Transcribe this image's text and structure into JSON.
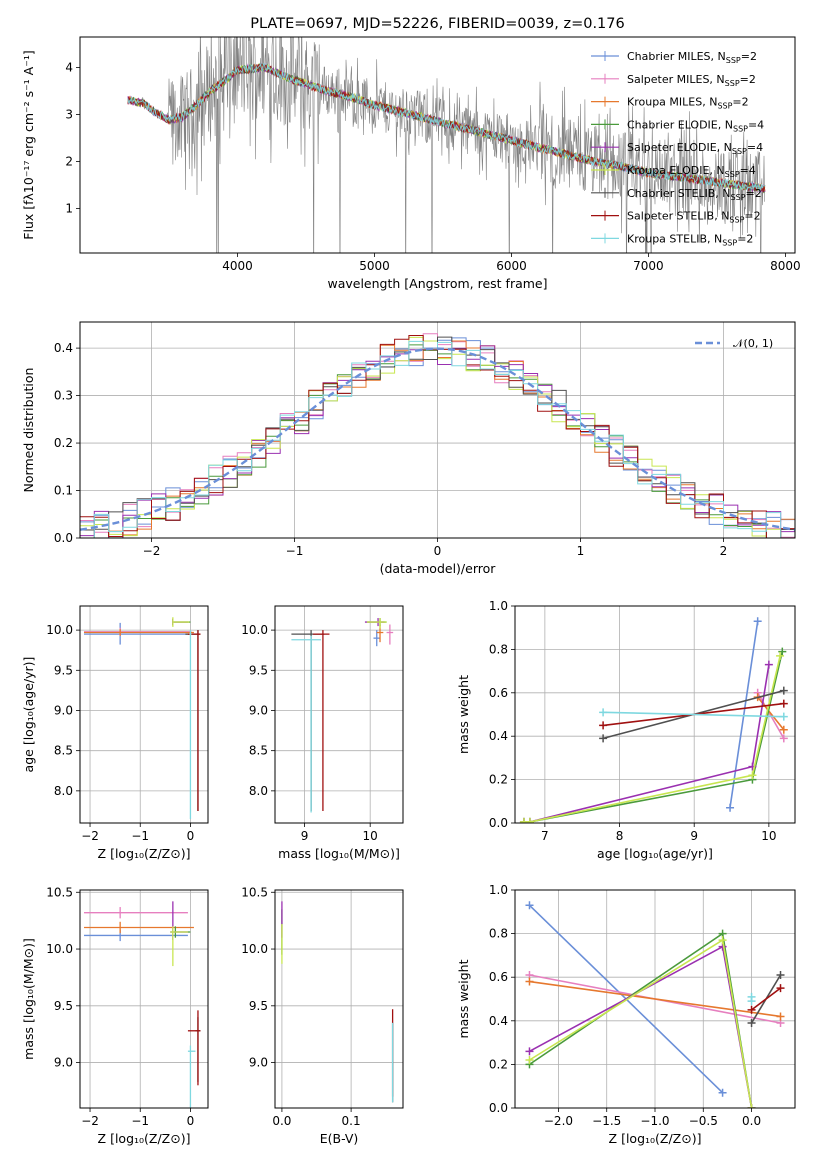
{
  "colors": {
    "Chabrier MILES": "#6a8fd8",
    "Salpeter MILES": "#e67fbf",
    "Kroupa MILES": "#e6782e",
    "Chabrier ELODIE": "#4a9a3c",
    "Salpeter ELODIE": "#9a30b0",
    "Kroupa ELODIE": "#c8e650",
    "Chabrier STELIB": "#505050",
    "Salpeter STELIB": "#a01010",
    "Kroupa STELIB": "#7fd8e0",
    "data": "#808080",
    "normal": "#6a8fd8"
  },
  "chart_data": [
    {
      "id": "spectrum",
      "type": "line",
      "title": "PLATE=0697, MJD=52226, FIBERID=0039, z=0.176",
      "xlabel": "wavelength [Angstrom, rest frame]",
      "ylabel": "Flux [fλ10⁻¹⁷ erg cm⁻² s⁻¹ A⁻¹]",
      "xlim": [
        2850,
        8070
      ],
      "ylim": [
        0.05,
        4.65
      ],
      "xticks": [
        4000,
        5000,
        6000,
        7000,
        8000
      ],
      "yticks": [
        1,
        2,
        3,
        4
      ],
      "grid": false,
      "legend_loc": "upper right",
      "legend": [
        {
          "label": "Chabrier MILES, N",
          "sub": "SSP",
          "suffix": "=2"
        },
        {
          "label": "Salpeter MILES, N",
          "sub": "SSP",
          "suffix": "=2"
        },
        {
          "label": "Kroupa MILES, N",
          "sub": "SSP",
          "suffix": "=2"
        },
        {
          "label": "Chabrier ELODIE, N",
          "sub": "SSP",
          "suffix": "=4"
        },
        {
          "label": "Salpeter ELODIE, N",
          "sub": "SSP",
          "suffix": "=4"
        },
        {
          "label": "Kroupa ELODIE, N",
          "sub": "SSP",
          "suffix": "=4"
        },
        {
          "label": "Chabrier STELIB, N",
          "sub": "SSP",
          "suffix": "=2"
        },
        {
          "label": "Salpeter STELIB, N",
          "sub": "SSP",
          "suffix": "=2"
        },
        {
          "label": "Kroupa STELIB, N",
          "sub": "SSP",
          "suffix": "=2"
        }
      ],
      "continuum": [
        [
          3200,
          3.3
        ],
        [
          3300,
          3.25
        ],
        [
          3400,
          3.05
        ],
        [
          3500,
          2.88
        ],
        [
          3600,
          2.95
        ],
        [
          3700,
          3.2
        ],
        [
          3800,
          3.5
        ],
        [
          3900,
          3.7
        ],
        [
          4000,
          3.95
        ],
        [
          4200,
          4.0
        ],
        [
          4400,
          3.75
        ],
        [
          4600,
          3.55
        ],
        [
          4800,
          3.4
        ],
        [
          5000,
          3.2
        ],
        [
          5200,
          3.05
        ],
        [
          5400,
          2.9
        ],
        [
          5600,
          2.75
        ],
        [
          5800,
          2.6
        ],
        [
          6000,
          2.45
        ],
        [
          6200,
          2.3
        ],
        [
          6400,
          2.15
        ],
        [
          6600,
          2.0
        ],
        [
          6800,
          1.9
        ],
        [
          7000,
          1.75
        ],
        [
          7200,
          1.68
        ],
        [
          7400,
          1.6
        ],
        [
          7600,
          1.52
        ],
        [
          7850,
          1.42
        ]
      ]
    },
    {
      "id": "residuals",
      "type": "step",
      "xlabel": "(data-model)/error",
      "ylabel": "Normed distribution",
      "xlim": [
        -2.5,
        2.5
      ],
      "ylim": [
        0,
        0.455
      ],
      "xticks": [
        -2,
        -1,
        0,
        1,
        2
      ],
      "yticks": [
        0.0,
        0.1,
        0.2,
        0.3,
        0.4
      ],
      "grid": true,
      "legend_loc": "upper right",
      "legend": [
        {
          "label": "𝒩(0, 1)"
        }
      ]
    },
    {
      "id": "age_vs_Z",
      "type": "errorbar",
      "xlabel": "Z [log₁₀(Z/Z⊙)]",
      "ylabel": "age  [log₁₀(age/yr)]",
      "xlim": [
        -2.2,
        0.35
      ],
      "ylim": [
        7.6,
        10.3
      ],
      "xticks": [
        -2,
        -1,
        0
      ],
      "yticks": [
        8.0,
        8.5,
        9.0,
        9.5,
        10.0
      ],
      "grid": true,
      "points": [
        {
          "model": "Chabrier MILES",
          "x": -1.4,
          "y": 9.95,
          "xerr": [
            0.72,
            1.42
          ],
          "yerr": [
            0.13,
            0.14
          ]
        },
        {
          "model": "Salpeter MILES",
          "x": -1.4,
          "y": 9.98,
          "xerr": [
            0.72,
            1.42
          ],
          "yerr": [
            0.05,
            0.05
          ]
        },
        {
          "model": "Kroupa MILES",
          "x": -1.4,
          "y": 9.97,
          "xerr": [
            0.72,
            1.47
          ],
          "yerr": [
            0.04,
            0.04
          ]
        },
        {
          "model": "Chabrier ELODIE",
          "x": -0.35,
          "y": 10.1,
          "xerr": [
            0.0,
            0.35
          ],
          "yerr": [
            0.04,
            0.04
          ]
        },
        {
          "model": "Salpeter ELODIE",
          "x": -0.35,
          "y": 10.1,
          "xerr": [
            0.0,
            0.3
          ],
          "yerr": [
            0.04,
            0.04
          ]
        },
        {
          "model": "Kroupa ELODIE",
          "x": -0.35,
          "y": 10.1,
          "xerr": [
            0.0,
            0.33
          ],
          "yerr": [
            0.06,
            0.06
          ]
        },
        {
          "model": "Chabrier STELIB",
          "x": 0.15,
          "y": 9.95,
          "xerr": [
            0.25,
            0.05
          ],
          "yerr": [
            2.2,
            0.05
          ]
        },
        {
          "model": "Salpeter STELIB",
          "x": 0.15,
          "y": 9.95,
          "xerr": [
            0.2,
            0.05
          ],
          "yerr": [
            2.2,
            0.05
          ]
        },
        {
          "model": "Kroupa STELIB",
          "x": 0.0,
          "y": 9.95,
          "xerr": [
            0.02,
            0.02
          ],
          "yerr": [
            2.3,
            0.05
          ]
        }
      ]
    },
    {
      "id": "age_vs_mass",
      "type": "errorbar",
      "xlabel": "mass [log₁₀(M/M⊙)]",
      "ylabel": "",
      "xlim": [
        8.55,
        10.5
      ],
      "ylim": [
        7.6,
        10.3
      ],
      "xticks": [
        9,
        10
      ],
      "yticks": [
        8.0,
        8.5,
        9.0,
        9.5,
        10.0
      ],
      "grid": true,
      "points": [
        {
          "model": "Chabrier MILES",
          "x": 10.1,
          "y": 9.9,
          "xerr": [
            0.05,
            0.05
          ],
          "yerr": [
            0.1,
            0.1
          ]
        },
        {
          "model": "Salpeter MILES",
          "x": 10.3,
          "y": 9.97,
          "xerr": [
            0.05,
            0.05
          ],
          "yerr": [
            0.15,
            0.1
          ]
        },
        {
          "model": "Kroupa MILES",
          "x": 10.15,
          "y": 9.97,
          "xerr": [
            0.05,
            0.05
          ],
          "yerr": [
            0.12,
            0.1
          ]
        },
        {
          "model": "Chabrier ELODIE",
          "x": 10.15,
          "y": 10.1,
          "xerr": [
            0.2,
            0.1
          ],
          "yerr": [
            0.05,
            0.05
          ]
        },
        {
          "model": "Salpeter ELODIE",
          "x": 10.12,
          "y": 10.1,
          "xerr": [
            0.2,
            0.1
          ],
          "yerr": [
            0.05,
            0.05
          ]
        },
        {
          "model": "Kroupa ELODIE",
          "x": 10.15,
          "y": 10.1,
          "xerr": [
            0.2,
            0.1
          ],
          "yerr": [
            0.08,
            0.05
          ]
        },
        {
          "model": "Chabrier STELIB",
          "x": 9.1,
          "y": 9.95,
          "xerr": [
            0.3,
            0.2
          ],
          "yerr": [
            2.2,
            0.05
          ]
        },
        {
          "model": "Salpeter STELIB",
          "x": 9.28,
          "y": 9.95,
          "xerr": [
            0.15,
            0.1
          ],
          "yerr": [
            2.2,
            0.05
          ]
        },
        {
          "model": "Kroupa STELIB",
          "x": 9.1,
          "y": 9.88,
          "xerr": [
            0.3,
            0.15
          ],
          "yerr": [
            2.15,
            0.05
          ]
        }
      ]
    },
    {
      "id": "weight_vs_age",
      "type": "line",
      "xlabel": "age  [log₁₀(age/yr)]",
      "ylabel": "mass weight",
      "xlim": [
        6.6,
        10.35
      ],
      "ylim": [
        0,
        1.0
      ],
      "xticks": [
        7,
        8,
        9,
        10
      ],
      "yticks": [
        0.0,
        0.2,
        0.4,
        0.6,
        0.8,
        1.0
      ],
      "grid": true,
      "series": [
        {
          "model": "Chabrier MILES",
          "points": [
            [
              9.48,
              0.07
            ],
            [
              9.85,
              0.93
            ]
          ]
        },
        {
          "model": "Salpeter MILES",
          "points": [
            [
              9.85,
              0.6
            ],
            [
              10.2,
              0.39
            ]
          ]
        },
        {
          "model": "Kroupa MILES",
          "points": [
            [
              9.85,
              0.58
            ],
            [
              10.2,
              0.43
            ]
          ]
        },
        {
          "model": "Chabrier ELODIE",
          "points": [
            [
              6.72,
              0.005
            ],
            [
              6.8,
              0.005
            ],
            [
              9.78,
              0.2
            ],
            [
              10.18,
              0.79
            ]
          ]
        },
        {
          "model": "Salpeter ELODIE",
          "points": [
            [
              6.72,
              0.005
            ],
            [
              6.8,
              0.005
            ],
            [
              9.78,
              0.26
            ],
            [
              10.0,
              0.73
            ]
          ]
        },
        {
          "model": "Kroupa ELODIE",
          "points": [
            [
              6.72,
              0.005
            ],
            [
              6.8,
              0.005
            ],
            [
              9.78,
              0.22
            ],
            [
              10.15,
              0.77
            ]
          ]
        },
        {
          "model": "Chabrier STELIB",
          "points": [
            [
              7.78,
              0.39
            ],
            [
              10.2,
              0.61
            ]
          ]
        },
        {
          "model": "Salpeter STELIB",
          "points": [
            [
              7.78,
              0.45
            ],
            [
              10.2,
              0.55
            ]
          ]
        },
        {
          "model": "Kroupa STELIB",
          "points": [
            [
              7.78,
              0.51
            ],
            [
              10.2,
              0.49
            ]
          ]
        }
      ]
    },
    {
      "id": "mass_vs_Z",
      "type": "errorbar",
      "xlabel": "Z [log₁₀(Z/Z⊙)]",
      "ylabel": "mass [log₁₀(M/M⊙)]",
      "xlim": [
        -2.2,
        0.35
      ],
      "ylim": [
        8.6,
        10.52
      ],
      "xticks": [
        -2,
        -1,
        0
      ],
      "yticks": [
        9.0,
        9.5,
        10.0,
        10.5
      ],
      "grid": true,
      "points": [
        {
          "model": "Chabrier MILES",
          "x": -1.4,
          "y": 10.12,
          "xerr": [
            0.72,
            1.35
          ],
          "yerr": [
            0.05,
            0.05
          ]
        },
        {
          "model": "Salpeter MILES",
          "x": -1.4,
          "y": 10.32,
          "xerr": [
            0.72,
            1.35
          ],
          "yerr": [
            0.05,
            0.05
          ]
        },
        {
          "model": "Kroupa MILES",
          "x": -1.4,
          "y": 10.19,
          "xerr": [
            0.72,
            1.47
          ],
          "yerr": [
            0.05,
            0.05
          ]
        },
        {
          "model": "Chabrier ELODIE",
          "x": -0.3,
          "y": 10.15,
          "xerr": [
            0.1,
            0.3
          ],
          "yerr": [
            0.05,
            0.05
          ]
        },
        {
          "model": "Salpeter ELODIE",
          "x": -0.35,
          "y": 10.15,
          "xerr": [
            0.05,
            0.3
          ],
          "yerr": [
            0.07,
            0.27
          ]
        },
        {
          "model": "Kroupa ELODIE",
          "x": -0.35,
          "y": 10.15,
          "xerr": [
            0.05,
            0.3
          ],
          "yerr": [
            0.3,
            0.05
          ]
        },
        {
          "model": "Chabrier STELIB",
          "x": 0.15,
          "y": 9.28,
          "xerr": [
            0.05,
            0.05
          ],
          "yerr": [
            0.45,
            0.12
          ]
        },
        {
          "model": "Salpeter STELIB",
          "x": 0.15,
          "y": 9.28,
          "xerr": [
            0.2,
            0.05
          ],
          "yerr": [
            0.48,
            0.18
          ]
        },
        {
          "model": "Kroupa STELIB",
          "x": 0.0,
          "y": 9.1,
          "xerr": [
            0.05,
            0.1
          ],
          "yerr": [
            0.55,
            0.05
          ]
        }
      ]
    },
    {
      "id": "mass_vs_EBV",
      "type": "errorbar",
      "xlabel": "E(B-V)",
      "ylabel": "",
      "xlim": [
        -0.01,
        0.175
      ],
      "ylim": [
        8.6,
        10.52
      ],
      "xticks": [
        0.0,
        0.1
      ],
      "yticks": [
        9.0,
        9.5,
        10.0,
        10.5
      ],
      "grid": true,
      "points": [
        {
          "model": "Chabrier ELODIE",
          "x": 0.0,
          "y": 10.15,
          "xerr": [
            0.0,
            0.0
          ],
          "yerr": [
            0.2,
            0.2
          ]
        },
        {
          "model": "Salpeter ELODIE",
          "x": 0.0,
          "y": 10.2,
          "xerr": [
            0.0,
            0.0
          ],
          "yerr": [
            0.1,
            0.22
          ]
        },
        {
          "model": "Kroupa ELODIE",
          "x": 0.0,
          "y": 10.12,
          "xerr": [
            0.0,
            0.0
          ],
          "yerr": [
            0.25,
            0.1
          ]
        },
        {
          "model": "Chabrier STELIB",
          "x": 0.16,
          "y": 9.1,
          "xerr": [
            0.0,
            0.0
          ],
          "yerr": [
            0.45,
            0.25
          ]
        },
        {
          "model": "Salpeter STELIB",
          "x": 0.16,
          "y": 9.2,
          "xerr": [
            0.0,
            0.0
          ],
          "yerr": [
            0.5,
            0.27
          ]
        },
        {
          "model": "Kroupa STELIB",
          "x": 0.16,
          "y": 9.05,
          "xerr": [
            0.0,
            0.0
          ],
          "yerr": [
            0.4,
            0.3
          ]
        }
      ]
    },
    {
      "id": "weight_vs_Z",
      "type": "line",
      "xlabel": "Z [log₁₀(Z/Z⊙)]",
      "ylabel": "mass weight",
      "xlim": [
        -2.45,
        0.45
      ],
      "ylim": [
        0,
        1.0
      ],
      "xticks": [
        -2.0,
        -1.5,
        -1.0,
        -0.5,
        0.0
      ],
      "yticks": [
        0.0,
        0.2,
        0.4,
        0.6,
        0.8,
        1.0
      ],
      "grid": true,
      "series": [
        {
          "model": "Chabrier MILES",
          "points": [
            [
              -2.3,
              0.93
            ],
            [
              -0.3,
              0.07
            ]
          ]
        },
        {
          "model": "Salpeter MILES",
          "points": [
            [
              -2.3,
              0.61
            ],
            [
              0.3,
              0.39
            ]
          ]
        },
        {
          "model": "Kroupa MILES",
          "points": [
            [
              -2.3,
              0.58
            ],
            [
              0.3,
              0.42
            ]
          ]
        },
        {
          "model": "Chabrier ELODIE",
          "points": [
            [
              -2.3,
              0.2
            ],
            [
              -0.3,
              0.8
            ],
            [
              0.0,
              0.0
            ]
          ]
        },
        {
          "model": "Salpeter ELODIE",
          "points": [
            [
              -2.3,
              0.26
            ],
            [
              -0.3,
              0.74
            ],
            [
              0.0,
              0.0
            ]
          ]
        },
        {
          "model": "Kroupa ELODIE",
          "points": [
            [
              -2.3,
              0.22
            ],
            [
              -0.3,
              0.77
            ],
            [
              0.0,
              0.0
            ]
          ]
        },
        {
          "model": "Chabrier STELIB",
          "points": [
            [
              0.0,
              0.39
            ],
            [
              0.3,
              0.61
            ]
          ]
        },
        {
          "model": "Salpeter STELIB",
          "points": [
            [
              0.0,
              0.45
            ],
            [
              0.3,
              0.55
            ]
          ]
        },
        {
          "model": "Kroupa STELIB",
          "points": [
            [
              0.0,
              0.51
            ],
            [
              0.0,
              0.49
            ]
          ]
        }
      ]
    }
  ]
}
